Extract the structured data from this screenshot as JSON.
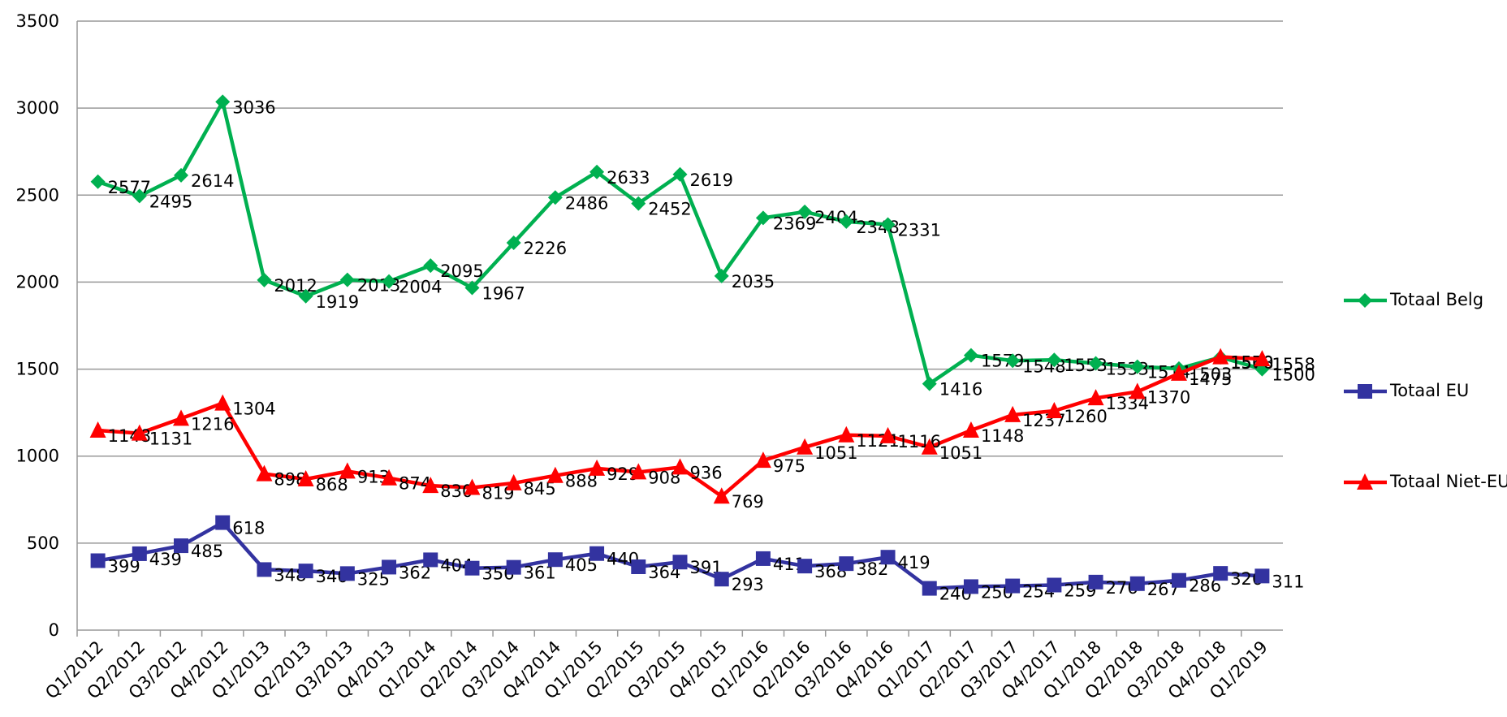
{
  "chart_data": {
    "type": "line",
    "categories": [
      "Q1/2012",
      "Q2/2012",
      "Q3/2012",
      "Q4/2012",
      "Q1/2013",
      "Q2/2013",
      "Q3/2013",
      "Q4/2013",
      "Q1/2014",
      "Q2/2014",
      "Q3/2014",
      "Q4/2014",
      "Q1/2015",
      "Q2/2015",
      "Q3/2015",
      "Q4/2015",
      "Q1/2016",
      "Q2/2016",
      "Q3/2016",
      "Q4/2016",
      "Q1/2017",
      "Q2/2017",
      "Q3/2017",
      "Q4/2017",
      "Q1/2018",
      "Q2/2018",
      "Q3/2018",
      "Q4/2018",
      "Q1/2019"
    ],
    "series": [
      {
        "name": "Totaal Belg",
        "color": "#00b050",
        "marker": "diamond",
        "values": [
          2577,
          2495,
          2614,
          3036,
          2012,
          1919,
          2013,
          2004,
          2095,
          1967,
          2226,
          2486,
          2633,
          2452,
          2619,
          2035,
          2369,
          2404,
          2348,
          2331,
          1416,
          1579,
          1548,
          1553,
          1533,
          1514,
          1503,
          1568,
          1500
        ]
      },
      {
        "name": "Totaal EU",
        "color": "#3333a0",
        "marker": "square",
        "values": [
          399,
          439,
          485,
          618,
          348,
          340,
          325,
          362,
          404,
          356,
          361,
          405,
          440,
          364,
          391,
          293,
          411,
          368,
          382,
          419,
          240,
          250,
          254,
          259,
          276,
          267,
          286,
          326,
          311
        ]
      },
      {
        "name": "Totaal Niet-EU",
        "color": "#ff0000",
        "marker": "triangle",
        "values": [
          1148,
          1131,
          1216,
          1304,
          898,
          868,
          913,
          874,
          830,
          819,
          845,
          888,
          929,
          908,
          936,
          769,
          975,
          1051,
          1121,
          1116,
          1051,
          1148,
          1237,
          1260,
          1334,
          1370,
          1475,
          1570,
          1558
        ]
      }
    ],
    "ylim": [
      0,
      3500
    ],
    "yticks": [
      0,
      500,
      1000,
      1500,
      2000,
      2500,
      3000,
      3500
    ],
    "grid": true,
    "legend": "right"
  }
}
